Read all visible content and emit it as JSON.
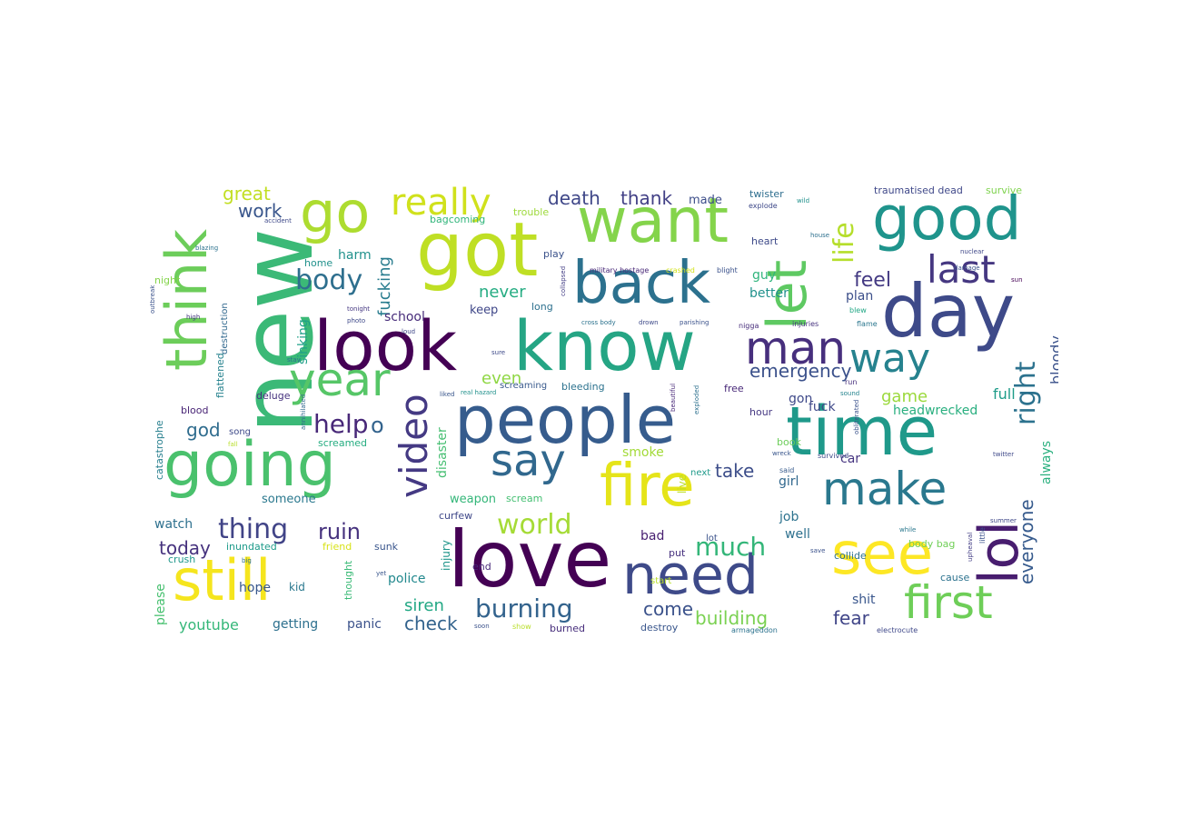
{
  "wordcloud": {
    "words": [
      {
        "text": "new",
        "color": "#3bb977"
      },
      {
        "text": "people",
        "color": "#365c8d"
      },
      {
        "text": "love",
        "color": "#440154"
      },
      {
        "text": "know",
        "color": "#25a584"
      },
      {
        "text": "time",
        "color": "#1f998a"
      },
      {
        "text": "got",
        "color": "#bfdf24"
      },
      {
        "text": "look",
        "color": "#440154"
      },
      {
        "text": "day",
        "color": "#3e4a89"
      },
      {
        "text": "going",
        "color": "#4ac16d"
      },
      {
        "text": "want",
        "color": "#84d44b"
      },
      {
        "text": "still",
        "color": "#f5e51e"
      },
      {
        "text": "back",
        "color": "#2c718e"
      },
      {
        "text": "good",
        "color": "#1f948c"
      },
      {
        "text": "fire",
        "color": "#e5e419"
      },
      {
        "text": "see",
        "color": "#fde725"
      },
      {
        "text": "need",
        "color": "#3e4a89"
      },
      {
        "text": "think",
        "color": "#6ccd5a"
      },
      {
        "text": "go",
        "color": "#addc30"
      },
      {
        "text": "year",
        "color": "#56c667"
      },
      {
        "text": "let",
        "color": "#5ec962"
      },
      {
        "text": "lol",
        "color": "#481d6f"
      },
      {
        "text": "make",
        "color": "#2a788e"
      },
      {
        "text": "man",
        "color": "#472f7d"
      },
      {
        "text": "say",
        "color": "#31688e"
      },
      {
        "text": "first",
        "color": "#6ece58"
      },
      {
        "text": "video",
        "color": "#443983"
      },
      {
        "text": "last",
        "color": "#453781"
      },
      {
        "text": "way",
        "color": "#26828e"
      },
      {
        "text": "really",
        "color": "#d0e11c"
      },
      {
        "text": "world",
        "color": "#a5db36"
      },
      {
        "text": "burning",
        "color": "#33638d"
      },
      {
        "text": "much",
        "color": "#34b679"
      },
      {
        "text": "thing",
        "color": "#414487"
      },
      {
        "text": "body",
        "color": "#2e6f8e"
      },
      {
        "text": "help",
        "color": "#482878"
      },
      {
        "text": "right",
        "color": "#2c728e"
      },
      {
        "text": "life",
        "color": "#b5de2b"
      },
      {
        "text": "everyone",
        "color": "#375b8d"
      },
      {
        "text": "ruin",
        "color": "#46327e"
      },
      {
        "text": "emergency",
        "color": "#3b518b"
      },
      {
        "text": "fucking",
        "color": "#287c8e"
      },
      {
        "text": "death",
        "color": "#3f4788"
      },
      {
        "text": "great",
        "color": "#c2df23"
      },
      {
        "text": "thank",
        "color": "#424086"
      },
      {
        "text": "building",
        "color": "#7ad151"
      },
      {
        "text": "check",
        "color": "#33638d"
      },
      {
        "text": "today",
        "color": "#46327e"
      },
      {
        "text": "youtube",
        "color": "#35b779"
      },
      {
        "text": "bloody",
        "color": "#3b528b"
      },
      {
        "text": "feel",
        "color": "#443a83"
      },
      {
        "text": "take",
        "color": "#3d4e8a"
      },
      {
        "text": "come",
        "color": "#3b528b"
      },
      {
        "text": "fear",
        "color": "#404588"
      },
      {
        "text": "work",
        "color": "#39568c"
      },
      {
        "text": "god",
        "color": "#2f6c8e"
      },
      {
        "text": "even",
        "color": "#8fd744"
      },
      {
        "text": "never",
        "color": "#25ac82"
      },
      {
        "text": "siren",
        "color": "#22a884"
      },
      {
        "text": "game",
        "color": "#9bd93c"
      },
      {
        "text": "full",
        "color": "#1e9c89"
      },
      {
        "text": "always",
        "color": "#2ab07f"
      },
      {
        "text": "disaster",
        "color": "#45be71"
      },
      {
        "text": "o",
        "color": "#33638d"
      },
      {
        "text": "sinking",
        "color": "#1fa088"
      },
      {
        "text": "watch",
        "color": "#2d708e"
      },
      {
        "text": "please",
        "color": "#46c06f"
      },
      {
        "text": "hope",
        "color": "#38588c"
      },
      {
        "text": "getting",
        "color": "#2d708e"
      },
      {
        "text": "panic",
        "color": "#3b528b"
      },
      {
        "text": "police",
        "color": "#23898e"
      },
      {
        "text": "headwrecked",
        "color": "#29af7f"
      },
      {
        "text": "keep",
        "color": "#3f4788"
      },
      {
        "text": "school",
        "color": "#472c7a"
      },
      {
        "text": "better",
        "color": "#21918c"
      },
      {
        "text": "plan",
        "color": "#3c4f8a"
      },
      {
        "text": "shit",
        "color": "#39568c"
      },
      {
        "text": "guy",
        "color": "#2fb47c"
      },
      {
        "text": "car",
        "color": "#463480"
      },
      {
        "text": "gon",
        "color": "#3e4989"
      },
      {
        "text": "girl",
        "color": "#31688e"
      },
      {
        "text": "job",
        "color": "#2c728e"
      },
      {
        "text": "fuck",
        "color": "#3f4889"
      },
      {
        "text": "well",
        "color": "#2d708e"
      },
      {
        "text": "bad",
        "color": "#482071"
      },
      {
        "text": "smoke",
        "color": "#a2da37"
      },
      {
        "text": "harm",
        "color": "#21918c"
      },
      {
        "text": "weapon",
        "color": "#34b679"
      },
      {
        "text": "someone",
        "color": "#2a788e"
      },
      {
        "text": "curfew",
        "color": "#3f4889"
      },
      {
        "text": "injury",
        "color": "#1f958b"
      },
      {
        "text": "thought",
        "color": "#3aba76"
      },
      {
        "text": "kid",
        "color": "#2a788e"
      },
      {
        "text": "end",
        "color": "#482979"
      },
      {
        "text": "burned",
        "color": "#472e7c"
      },
      {
        "text": "destroy",
        "color": "#39568c"
      },
      {
        "text": "crush",
        "color": "#1f988b"
      },
      {
        "text": "bagcoming",
        "color": "#31b57b"
      },
      {
        "text": "trouble",
        "color": "#9dd93b"
      },
      {
        "text": "twister",
        "color": "#2e6e8e"
      },
      {
        "text": "traumatised dead",
        "color": "#3f4889"
      },
      {
        "text": "survive",
        "color": "#7fd34e"
      },
      {
        "text": "made",
        "color": "#3d4e8a"
      },
      {
        "text": "blood",
        "color": "#482475"
      },
      {
        "text": "deluge",
        "color": "#46327e"
      },
      {
        "text": "catastrophe",
        "color": "#277f8e"
      },
      {
        "text": "song",
        "color": "#3e4a89"
      },
      {
        "text": "screaming",
        "color": "#38598c"
      },
      {
        "text": "bleeding",
        "color": "#2c728e"
      },
      {
        "text": "scream",
        "color": "#43bf71"
      },
      {
        "text": "free",
        "color": "#482878"
      },
      {
        "text": "hour",
        "color": "#453882"
      },
      {
        "text": "next",
        "color": "#1f9a8a"
      },
      {
        "text": "lot",
        "color": "#3b528b"
      },
      {
        "text": "collide",
        "color": "#2d708e"
      },
      {
        "text": "body bag",
        "color": "#70cf57"
      },
      {
        "text": "start",
        "color": "#b8de29"
      },
      {
        "text": "put",
        "color": "#46307e"
      },
      {
        "text": "heart",
        "color": "#3e4a89"
      },
      {
        "text": "play",
        "color": "#3b528b"
      },
      {
        "text": "long",
        "color": "#2d708e"
      },
      {
        "text": "home",
        "color": "#21918c"
      },
      {
        "text": "screamed",
        "color": "#26ad81"
      },
      {
        "text": "flattened",
        "color": "#26828e"
      },
      {
        "text": "friend",
        "color": "#d8e219"
      },
      {
        "text": "inundated",
        "color": "#1e9b8a"
      },
      {
        "text": "sunk",
        "color": "#39558c"
      },
      {
        "text": "book",
        "color": "#6ccd5a"
      },
      {
        "text": "cause",
        "color": "#2c728e"
      },
      {
        "text": "night",
        "color": "#84d44b"
      },
      {
        "text": "destruction",
        "color": "#31688e"
      },
      {
        "text": "live",
        "color": "#bddf26"
      },
      {
        "text": "military hostage",
        "color": "#482878"
      },
      {
        "text": "crashed",
        "color": "#d2e21b"
      },
      {
        "text": "blight",
        "color": "#3b528b"
      },
      {
        "text": "electrocute",
        "color": "#3f4889"
      },
      {
        "text": "armageddon",
        "color": "#2c728e"
      },
      {
        "text": "nigga",
        "color": "#472d7b"
      },
      {
        "text": "injuries",
        "color": "#46337f"
      },
      {
        "text": "blew",
        "color": "#22a785"
      },
      {
        "text": "flame",
        "color": "#2a768e"
      },
      {
        "text": "sound",
        "color": "#25848e"
      },
      {
        "text": "run",
        "color": "#472f7d"
      },
      {
        "text": "said",
        "color": "#375b8d"
      },
      {
        "text": "survived",
        "color": "#3e4a89"
      },
      {
        "text": "little",
        "color": "#3b528b"
      },
      {
        "text": "upheaval",
        "color": "#433e85"
      },
      {
        "text": "explode",
        "color": "#3e4989"
      },
      {
        "text": "house",
        "color": "#2d708e"
      },
      {
        "text": "nuclear",
        "color": "#3f4788"
      },
      {
        "text": "damage",
        "color": "#3b528b"
      },
      {
        "text": "accident",
        "color": "#3e4989"
      },
      {
        "text": "blazing",
        "color": "#2c728e"
      },
      {
        "text": "high",
        "color": "#453781"
      },
      {
        "text": "collapsed",
        "color": "#433e85"
      },
      {
        "text": "beautiful",
        "color": "#482878"
      },
      {
        "text": "exploded",
        "color": "#2d708e"
      },
      {
        "text": "cross body",
        "color": "#2c728e"
      },
      {
        "text": "drown",
        "color": "#3e4a89"
      },
      {
        "text": "parishing",
        "color": "#3b528b"
      },
      {
        "text": "photo",
        "color": "#3e4989"
      },
      {
        "text": "tonight",
        "color": "#453882"
      },
      {
        "text": "stay",
        "color": "#2c728e"
      },
      {
        "text": "liked",
        "color": "#39568c"
      },
      {
        "text": "real hazard",
        "color": "#21918c"
      },
      {
        "text": "fall",
        "color": "#b8de29"
      },
      {
        "text": "wreck",
        "color": "#39568c"
      },
      {
        "text": "obliterated",
        "color": "#3b528b"
      },
      {
        "text": "twitter",
        "color": "#3e4989"
      },
      {
        "text": "summer",
        "color": "#3f4788"
      },
      {
        "text": "while",
        "color": "#2a788e"
      },
      {
        "text": "save",
        "color": "#3b528b"
      },
      {
        "text": "show",
        "color": "#b8de29"
      },
      {
        "text": "soon",
        "color": "#3b528b"
      },
      {
        "text": "yet",
        "color": "#39568c"
      },
      {
        "text": "big",
        "color": "#2d708e"
      },
      {
        "text": "sure",
        "color": "#3e4a89"
      },
      {
        "text": "outbreak",
        "color": "#3b528b"
      },
      {
        "text": "loud",
        "color": "#3f4788"
      },
      {
        "text": "annihilated",
        "color": "#31688e"
      },
      {
        "text": "wild",
        "color": "#21918c"
      },
      {
        "text": "sun",
        "color": "#440154"
      }
    ]
  }
}
